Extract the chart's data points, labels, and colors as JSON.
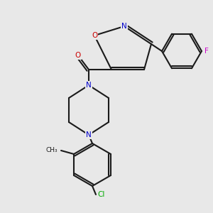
{
  "bg_color": "#e8e8e8",
  "bond_color": "#1a1a1a",
  "bond_lw": 1.5,
  "atom_colors": {
    "N": "#0000cc",
    "O": "#cc0000",
    "F": "#cc00cc",
    "Cl": "#00aa00"
  },
  "font_size": 7.5,
  "font_size_label": 7.0
}
